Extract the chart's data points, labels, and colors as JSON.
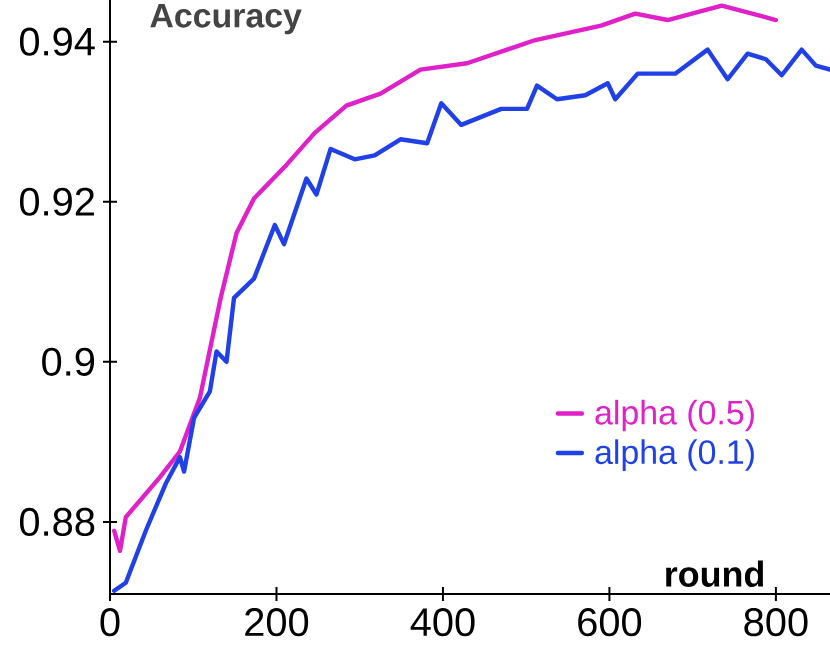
{
  "chart_data": {
    "type": "line",
    "title": "Accuracy",
    "xlabel": "round",
    "xlim": [
      0,
      865
    ],
    "ylim": [
      0.871,
      0.9452
    ],
    "xticks": [
      0,
      200,
      400,
      600,
      800
    ],
    "yticks": [
      0.88,
      0.9,
      0.92,
      0.94
    ],
    "legend": "right",
    "grid": false,
    "line_style": "solid",
    "marker": "none",
    "series": [
      {
        "name": "alpha (0.5)",
        "color": "#e020c8",
        "x": [
          5,
          12,
          19,
          60,
          84,
          108,
          133,
          152,
          173,
          212,
          246,
          284,
          325,
          373,
          429,
          511,
          590,
          631,
          670,
          735,
          800
        ],
        "values": [
          0.8789,
          0.8764,
          0.8806,
          0.8856,
          0.8888,
          0.8955,
          0.908,
          0.9161,
          0.9204,
          0.9246,
          0.9286,
          0.932,
          0.9335,
          0.9365,
          0.9373,
          0.9402,
          0.942,
          0.9435,
          0.9427,
          0.9445,
          0.9427
        ]
      },
      {
        "name": "alpha (0.1)",
        "color": "#2040e8",
        "x": [
          5,
          19,
          43,
          67,
          84,
          89,
          101,
          120,
          128,
          140,
          149,
          173,
          198,
          209,
          236,
          248,
          265,
          294,
          318,
          349,
          381,
          398,
          422,
          470,
          501,
          513,
          537,
          571,
          598,
          607,
          634,
          679,
          718,
          742,
          766,
          788,
          807,
          831,
          848,
          865
        ],
        "values": [
          0.8714,
          0.8724,
          0.8789,
          0.8848,
          0.8881,
          0.8863,
          0.893,
          0.8963,
          0.9013,
          0.9,
          0.908,
          0.9104,
          0.9171,
          0.9147,
          0.9229,
          0.9209,
          0.9266,
          0.9253,
          0.9258,
          0.9278,
          0.9273,
          0.9323,
          0.9296,
          0.9316,
          0.9316,
          0.9345,
          0.9328,
          0.9333,
          0.9348,
          0.9328,
          0.936,
          0.936,
          0.939,
          0.9353,
          0.9385,
          0.9378,
          0.9358,
          0.939,
          0.937,
          0.9365
        ]
      }
    ]
  }
}
